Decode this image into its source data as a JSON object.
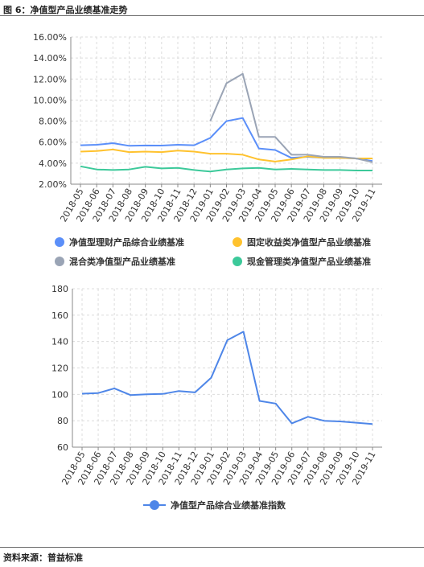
{
  "figure_title": "图 6：净值型产品业绩基准走势",
  "source_text": "资料来源：普益标准",
  "colors": {
    "net_value": "#5b8ff9",
    "fixed_income": "#ffc22e",
    "hybrid": "#9aa4b5",
    "cash": "#3cc99a",
    "index": "#4e86e8",
    "axis": "#888888",
    "grid": "#dcdcdc"
  },
  "chart_data": [
    {
      "type": "line",
      "title": "",
      "categories": [
        "2018-05",
        "2018-06",
        "2018-07",
        "2018-08",
        "2018-09",
        "2018-10",
        "2018-11",
        "2018-12",
        "2019-01",
        "2019-02",
        "2019-03",
        "2019-04",
        "2019-05",
        "2019-06",
        "2019-07",
        "2019-08",
        "2019-09",
        "2019-10",
        "2019-11"
      ],
      "ylim": [
        0.02,
        0.16
      ],
      "yticks": [
        "16.00%",
        "14.00%",
        "12.00%",
        "10.00%",
        "8.00%",
        "6.00%",
        "4.00%",
        "2.00%"
      ],
      "ytick_values": [
        0.16,
        0.14,
        0.12,
        0.1,
        0.08,
        0.06,
        0.04,
        0.02
      ],
      "grid": true,
      "legend_position": "bottom",
      "series": [
        {
          "name": "净值型理财产品综合业绩基准",
          "color_key": "net_value",
          "values": [
            0.057,
            0.0575,
            0.059,
            0.0565,
            0.0568,
            0.0567,
            0.0575,
            0.057,
            0.064,
            0.08,
            0.083,
            0.054,
            0.0525,
            0.045,
            0.046,
            0.045,
            0.045,
            0.0445,
            0.042
          ]
        },
        {
          "name": "固定收益类净值型产品业绩基准",
          "color_key": "fixed_income",
          "values": [
            0.051,
            0.0515,
            0.053,
            0.0505,
            0.051,
            0.0505,
            0.052,
            0.051,
            0.049,
            0.049,
            0.048,
            0.0435,
            0.0415,
            0.0435,
            0.0465,
            0.045,
            0.045,
            0.0445,
            0.0445
          ]
        },
        {
          "name": "混合类净值型产品业绩基准",
          "color_key": "hybrid",
          "values": [
            null,
            null,
            null,
            null,
            null,
            null,
            null,
            null,
            0.08,
            0.116,
            0.125,
            0.065,
            0.065,
            0.048,
            0.048,
            0.046,
            0.046,
            0.0445,
            0.041
          ]
        },
        {
          "name": "现金管理类净值型产品业绩基准",
          "color_key": "cash",
          "values": [
            0.037,
            0.034,
            0.0335,
            0.034,
            0.0365,
            0.035,
            0.0355,
            0.0335,
            0.032,
            0.034,
            0.035,
            0.0355,
            0.034,
            0.0345,
            0.034,
            0.0335,
            0.0335,
            0.033,
            0.033
          ]
        }
      ]
    },
    {
      "type": "line",
      "title": "",
      "categories": [
        "2018-05",
        "2018-06",
        "2018-07",
        "2018-08",
        "2018-09",
        "2018-10",
        "2018-11",
        "2018-12",
        "2019-01",
        "2019-02",
        "2019-03",
        "2019-04",
        "2019-05",
        "2019-06",
        "2019-07",
        "2019-08",
        "2019-09",
        "2019-10",
        "2019-11"
      ],
      "ylim": [
        60,
        180
      ],
      "yticks": [
        "180",
        "160",
        "140",
        "120",
        "100",
        "80",
        "60"
      ],
      "ytick_values": [
        180,
        160,
        140,
        120,
        100,
        80,
        60
      ],
      "grid": true,
      "legend_position": "bottom",
      "series": [
        {
          "name": "净值型产品综合业绩基准指数",
          "color_key": "index",
          "values": [
            100.5,
            101,
            104.5,
            99.5,
            100,
            100.3,
            102.5,
            101.5,
            112.5,
            141,
            147.5,
            95,
            93,
            78,
            83,
            80,
            79.5,
            78.5,
            77.5
          ]
        }
      ]
    }
  ]
}
